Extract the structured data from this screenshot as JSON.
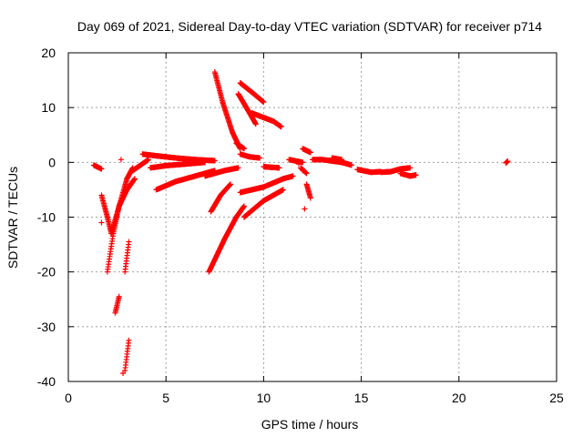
{
  "chart_data": {
    "type": "scatter",
    "title": "Day 069 of 2021, Sidereal Day-to-day VTEC variation (SDTVAR) for receiver p714",
    "xlabel": "GPS time / hours",
    "ylabel": "SDTVAR / TECUs",
    "xlim": [
      0,
      25
    ],
    "ylim": [
      -40,
      20
    ],
    "xticks": [
      0,
      5,
      10,
      15,
      20,
      25
    ],
    "yticks": [
      -40,
      -30,
      -20,
      -10,
      0,
      10,
      20
    ],
    "grid": true,
    "marker": "+",
    "color": "#ff0000",
    "tracks": [
      {
        "x": [
          1.3,
          1.7
        ],
        "y": [
          -0.5,
          -1.2
        ]
      },
      {
        "x": [
          1.7,
          2.0,
          2.2
        ],
        "y": [
          -6,
          -10,
          -13
        ]
      },
      {
        "x": [
          2.0,
          2.3,
          2.6,
          3.0,
          3.3
        ],
        "y": [
          -20,
          -13,
          -8,
          -3,
          -1
        ]
      },
      {
        "x": [
          2.2,
          2.6,
          3.0,
          3.4
        ],
        "y": [
          -13,
          -8,
          -5,
          -3
        ]
      },
      {
        "x": [
          2.4,
          2.6
        ],
        "y": [
          -27.5,
          -24.5
        ]
      },
      {
        "x": [
          2.9,
          3.1
        ],
        "y": [
          -38,
          -32.5
        ]
      },
      {
        "x": [
          2.9,
          3.1
        ],
        "y": [
          -20,
          -14.5
        ]
      },
      {
        "x": [
          3.3,
          3.7,
          4.1
        ],
        "y": [
          -1.5,
          -0.5,
          0.5
        ]
      },
      {
        "x": [
          3.8,
          4.5,
          5.5,
          6.5,
          7.5
        ],
        "y": [
          1.5,
          1.2,
          0.8,
          0.5,
          0.3
        ]
      },
      {
        "x": [
          4.2,
          5.0,
          6.0,
          7.0
        ],
        "y": [
          -1.0,
          -0.6,
          -0.3,
          0.0
        ]
      },
      {
        "x": [
          4.5,
          5.5,
          6.5,
          7.5
        ],
        "y": [
          -5,
          -3.5,
          -2.5,
          -1.5
        ]
      },
      {
        "x": [
          7.2,
          8.0,
          8.6,
          9.0
        ],
        "y": [
          -20,
          -14,
          -10,
          -8
        ]
      },
      {
        "x": [
          7.3,
          7.8,
          8.3
        ],
        "y": [
          -9,
          -6,
          -4
        ]
      },
      {
        "x": [
          7.0,
          7.5,
          8.0,
          8.7
        ],
        "y": [
          -2.5,
          -2.0,
          -1.5,
          -1.0
        ]
      },
      {
        "x": [
          7.5,
          7.9,
          8.4,
          8.8
        ],
        "y": [
          16.5,
          11,
          5.5,
          2.5
        ]
      },
      {
        "x": [
          8.6,
          9.0
        ],
        "y": [
          3.5,
          2.5
        ]
      },
      {
        "x": [
          8.8,
          9.5,
          10.0
        ],
        "y": [
          14.5,
          12.5,
          11.0
        ]
      },
      {
        "x": [
          8.7,
          9.2,
          9.6
        ],
        "y": [
          12.5,
          9.5,
          7.0
        ]
      },
      {
        "x": [
          9.4,
          10.5,
          10.9
        ],
        "y": [
          9.0,
          7.5,
          6.5
        ]
      },
      {
        "x": [
          8.8,
          9.3,
          9.8
        ],
        "y": [
          1.5,
          1.0,
          0.8
        ]
      },
      {
        "x": [
          8.8,
          10.0,
          11.0,
          11.5
        ],
        "y": [
          -5.5,
          -4.5,
          -3.0,
          -2.5
        ]
      },
      {
        "x": [
          9.0,
          10.0,
          11.0
        ],
        "y": [
          -10,
          -7,
          -5
        ]
      },
      {
        "x": [
          10.0,
          10.8
        ],
        "y": [
          -0.8,
          -1.0
        ]
      },
      {
        "x": [
          11.3,
          12.0
        ],
        "y": [
          0.5,
          0.0
        ]
      },
      {
        "x": [
          12.0,
          12.4
        ],
        "y": [
          2.5,
          1.8
        ]
      },
      {
        "x": [
          11.9,
          12.2
        ],
        "y": [
          -1.0,
          -2.0
        ]
      },
      {
        "x": [
          12.2,
          12.4
        ],
        "y": [
          -4.0,
          -6.5
        ]
      },
      {
        "x": [
          12.5,
          13.0,
          14.0,
          14.5
        ],
        "y": [
          0.5,
          0.5,
          0.0,
          -0.5
        ]
      },
      {
        "x": [
          13.5,
          14.0
        ],
        "y": [
          0.8,
          0.5
        ]
      },
      {
        "x": [
          14.8,
          15.5,
          16.0
        ],
        "y": [
          -1.3,
          -1.8,
          -1.7
        ]
      },
      {
        "x": [
          16.0,
          16.5,
          17.0,
          17.5
        ],
        "y": [
          -1.8,
          -1.7,
          -1.2,
          -1.0
        ]
      },
      {
        "x": [
          17.0,
          17.5,
          17.8
        ],
        "y": [
          -2.0,
          -2.5,
          -2.3
        ]
      },
      {
        "x": [
          22.4,
          22.5
        ],
        "y": [
          -0.1,
          0.2
        ]
      }
    ],
    "isolated_points": [
      {
        "x": 2.7,
        "y": 0.5
      },
      {
        "x": 1.7,
        "y": -11
      },
      {
        "x": 12.1,
        "y": -8.5
      },
      {
        "x": 12.0,
        "y": -1.5
      },
      {
        "x": 11.8,
        "y": -0.3
      },
      {
        "x": 2.8,
        "y": -38.5
      }
    ]
  }
}
